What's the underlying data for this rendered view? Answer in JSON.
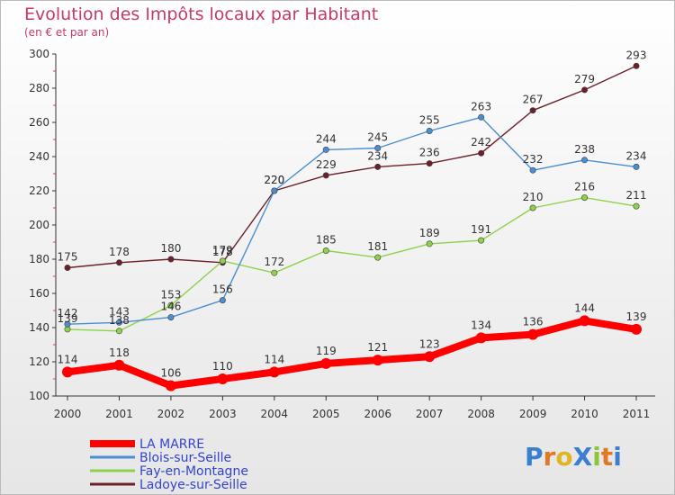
{
  "chart_data": {
    "type": "line",
    "title": "Evolution des Impôts locaux par Habitant",
    "subtitle": "(en € et par an)",
    "x": [
      "2000",
      "2001",
      "2002",
      "2003",
      "2004",
      "2005",
      "2006",
      "2007",
      "2008",
      "2009",
      "2010",
      "2011"
    ],
    "ylim": [
      100,
      300
    ],
    "yticks": [
      "100",
      "120",
      "140",
      "160",
      "180",
      "200",
      "220",
      "240",
      "260",
      "280",
      "300"
    ],
    "grid": false,
    "legend_position": "bottom-left",
    "series": [
      {
        "name": "LA MARRE",
        "color": "#ff0000",
        "values": [
          114,
          118,
          106,
          110,
          114,
          119,
          121,
          123,
          134,
          136,
          144,
          139
        ]
      },
      {
        "name": "Blois-sur-Seille",
        "color": "#4b8fd1",
        "values": [
          142,
          143,
          146,
          156,
          220,
          244,
          245,
          255,
          263,
          232,
          238,
          234
        ]
      },
      {
        "name": "Fay-en-Montagne",
        "color": "#8fd14b",
        "values": [
          139,
          138,
          153,
          179,
          172,
          185,
          181,
          189,
          191,
          210,
          216,
          211
        ]
      },
      {
        "name": "Ladoye-sur-Seille",
        "color": "#6b1f2a",
        "values": [
          175,
          178,
          180,
          178,
          220,
          229,
          234,
          236,
          242,
          267,
          279,
          293
        ]
      }
    ]
  },
  "logo": {
    "letters": [
      {
        "ch": "P",
        "color": "#3a7fd0"
      },
      {
        "ch": "r",
        "color": "#e07a22"
      },
      {
        "ch": "o",
        "color": "#e0b422"
      },
      {
        "ch": "X",
        "color": "#3a7fd0"
      },
      {
        "ch": "i",
        "color": "#8fc43a"
      },
      {
        "ch": "t",
        "color": "#e07a22"
      },
      {
        "ch": "i",
        "color": "#3a7fd0"
      }
    ]
  }
}
